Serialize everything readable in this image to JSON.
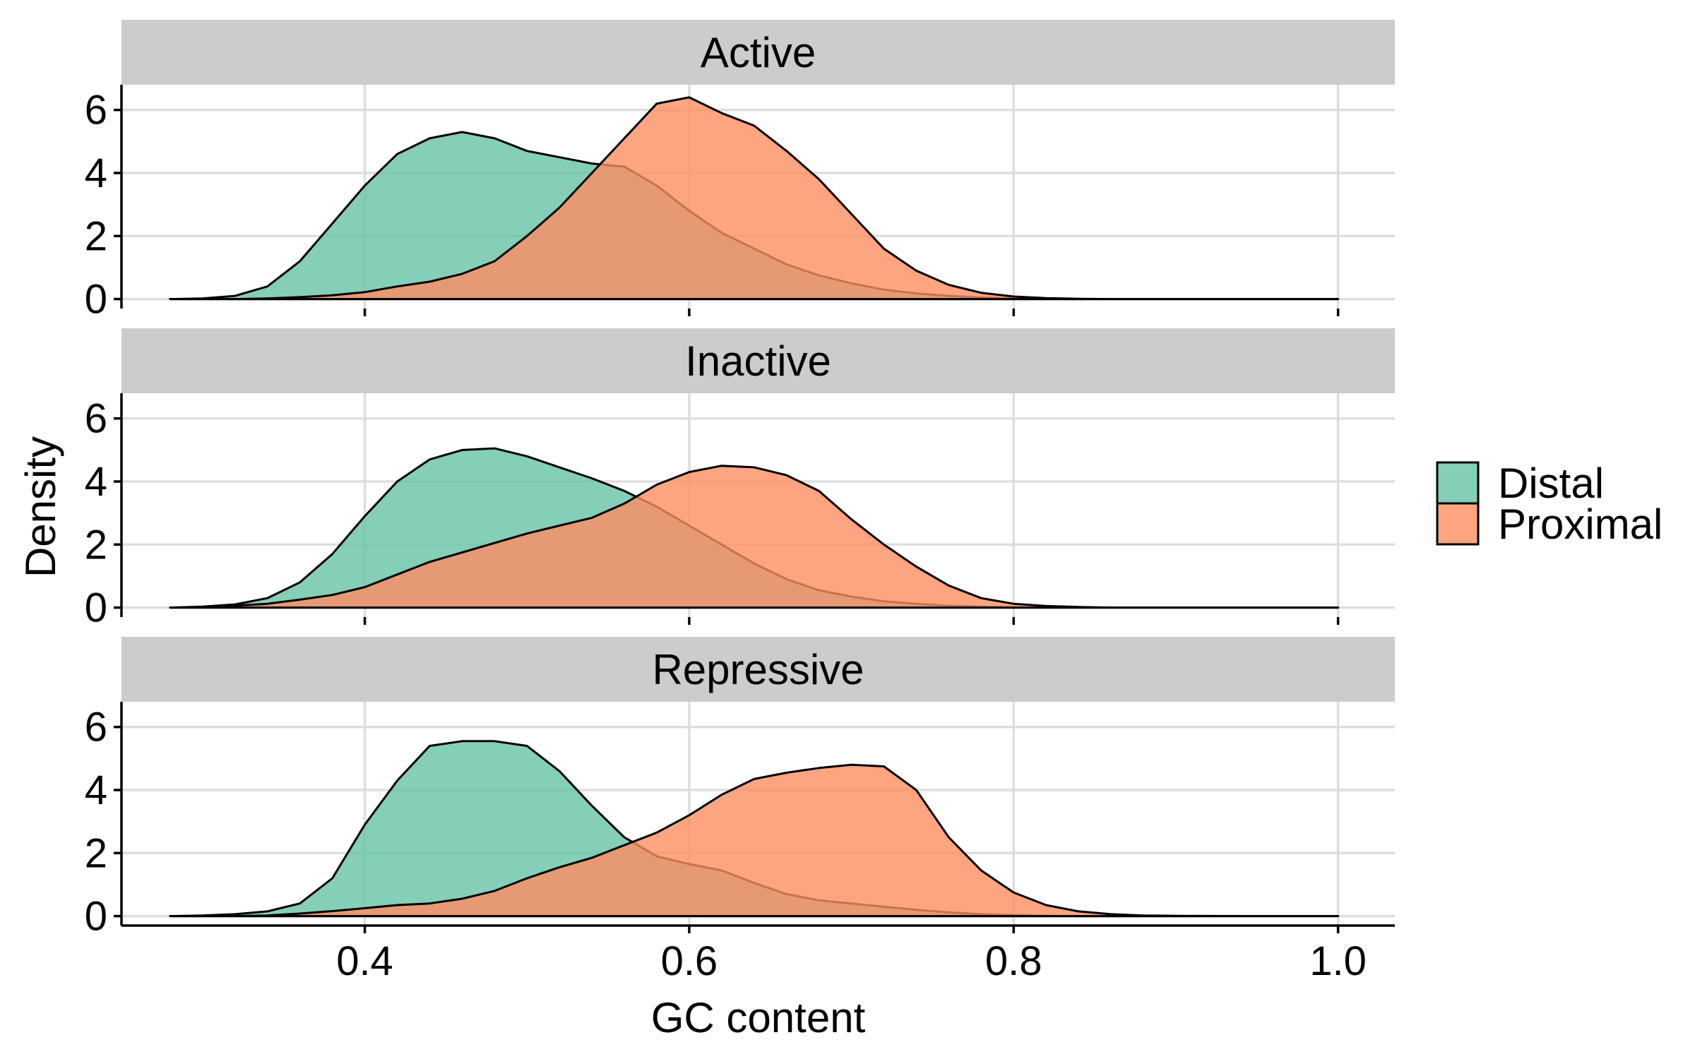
{
  "chart_data": {
    "type": "area",
    "subtype": "density",
    "xlabel": "GC content",
    "ylabel": "Density",
    "xlim": [
      0.25,
      1.035
    ],
    "ylim": [
      -0.3,
      6.8
    ],
    "x_ticks": [
      0.4,
      0.6,
      0.8,
      1.0
    ],
    "x_tick_labels": [
      "0.4",
      "0.6",
      "0.8",
      "1.0"
    ],
    "y_ticks": [
      0,
      2,
      4,
      6
    ],
    "y_tick_labels": [
      "0",
      "2",
      "4",
      "6"
    ],
    "grid": true,
    "legend": {
      "position": "right",
      "entries": [
        {
          "label": "Distal",
          "color": "#66C2A5"
        },
        {
          "label": "Proximal",
          "color": "#FC8D62"
        }
      ]
    },
    "colors": {
      "Distal": "#66C2A5",
      "Proximal": "#FC8D62",
      "strip": "#CCCCCC",
      "grid": "#DEDEDE"
    },
    "x": [
      0.28,
      0.3,
      0.32,
      0.34,
      0.36,
      0.38,
      0.4,
      0.42,
      0.44,
      0.46,
      0.48,
      0.5,
      0.52,
      0.54,
      0.56,
      0.58,
      0.6,
      0.62,
      0.64,
      0.66,
      0.68,
      0.7,
      0.72,
      0.74,
      0.76,
      0.78,
      0.8,
      0.82,
      0.84,
      0.86,
      0.88,
      0.9,
      0.95,
      1.0
    ],
    "panels": [
      {
        "title": "Active",
        "series": [
          {
            "name": "Distal",
            "values": [
              0.0,
              0.02,
              0.1,
              0.4,
              1.2,
              2.4,
              3.6,
              4.6,
              5.1,
              5.3,
              5.1,
              4.7,
              4.5,
              4.3,
              4.2,
              3.6,
              2.8,
              2.1,
              1.6,
              1.1,
              0.75,
              0.5,
              0.3,
              0.18,
              0.1,
              0.05,
              0.02,
              0.01,
              0.0,
              0.0,
              0.0,
              0.0,
              0.0,
              0.0
            ]
          },
          {
            "name": "Proximal",
            "values": [
              0.0,
              0.0,
              0.0,
              0.02,
              0.06,
              0.12,
              0.22,
              0.4,
              0.55,
              0.8,
              1.2,
              2.0,
              2.9,
              4.0,
              5.1,
              6.2,
              6.4,
              5.9,
              5.5,
              4.7,
              3.8,
              2.7,
              1.6,
              0.9,
              0.45,
              0.2,
              0.08,
              0.03,
              0.01,
              0.0,
              0.0,
              0.0,
              0.0,
              0.0
            ]
          }
        ]
      },
      {
        "title": "Inactive",
        "series": [
          {
            "name": "Distal",
            "values": [
              0.0,
              0.03,
              0.1,
              0.3,
              0.8,
              1.7,
              2.9,
              4.0,
              4.7,
              5.0,
              5.05,
              4.8,
              4.45,
              4.1,
              3.7,
              3.2,
              2.6,
              2.0,
              1.4,
              0.9,
              0.55,
              0.35,
              0.2,
              0.12,
              0.06,
              0.03,
              0.01,
              0.0,
              0.0,
              0.0,
              0.0,
              0.0,
              0.0,
              0.0
            ]
          },
          {
            "name": "Proximal",
            "values": [
              0.0,
              0.02,
              0.06,
              0.12,
              0.25,
              0.4,
              0.65,
              1.05,
              1.45,
              1.75,
              2.05,
              2.35,
              2.6,
              2.85,
              3.3,
              3.9,
              4.3,
              4.5,
              4.45,
              4.2,
              3.7,
              2.8,
              2.0,
              1.3,
              0.7,
              0.3,
              0.12,
              0.05,
              0.02,
              0.0,
              0.0,
              0.0,
              0.0,
              0.0
            ]
          }
        ]
      },
      {
        "title": "Repressive",
        "series": [
          {
            "name": "Distal",
            "values": [
              0.0,
              0.02,
              0.06,
              0.15,
              0.4,
              1.2,
              2.9,
              4.3,
              5.4,
              5.55,
              5.55,
              5.4,
              4.6,
              3.5,
              2.5,
              1.9,
              1.65,
              1.45,
              1.05,
              0.7,
              0.5,
              0.4,
              0.3,
              0.2,
              0.12,
              0.06,
              0.03,
              0.01,
              0.0,
              0.0,
              0.0,
              0.0,
              0.0,
              0.0
            ]
          },
          {
            "name": "Proximal",
            "values": [
              0.0,
              0.0,
              0.0,
              0.02,
              0.08,
              0.16,
              0.25,
              0.35,
              0.4,
              0.55,
              0.8,
              1.2,
              1.55,
              1.85,
              2.25,
              2.65,
              3.2,
              3.85,
              4.35,
              4.55,
              4.7,
              4.8,
              4.75,
              4.0,
              2.5,
              1.45,
              0.75,
              0.35,
              0.15,
              0.06,
              0.02,
              0.01,
              0.0,
              0.0
            ]
          }
        ]
      }
    ]
  }
}
